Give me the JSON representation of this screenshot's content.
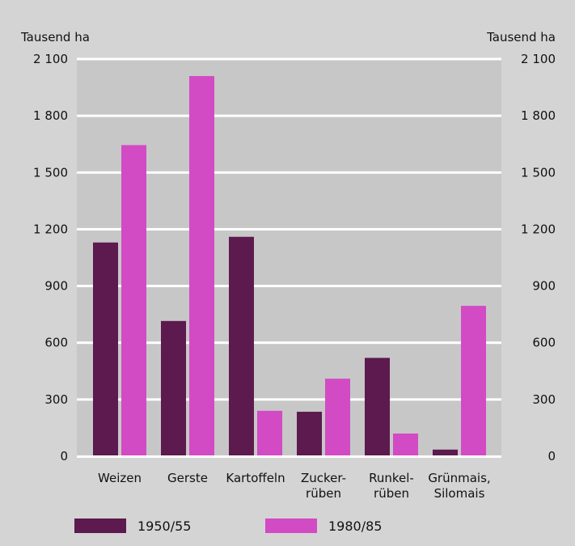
{
  "chart_data": {
    "type": "bar",
    "y_unit_left": "Tausend ha",
    "y_unit_right": "Tausend ha",
    "categories": [
      [
        "Weizen"
      ],
      [
        "Gerste"
      ],
      [
        "Kartoffeln"
      ],
      [
        "Zucker-",
        "rüben"
      ],
      [
        "Runkel-",
        "rüben"
      ],
      [
        "Grünmais,",
        "Silomais"
      ]
    ],
    "series": [
      {
        "name": "1950/55",
        "color": "#5c1a4e",
        "values": [
          1130,
          715,
          1160,
          235,
          520,
          35
        ]
      },
      {
        "name": "1980/85",
        "color": "#d24bc4",
        "values": [
          1645,
          2010,
          240,
          410,
          120,
          795
        ]
      }
    ],
    "ylim": [
      0,
      2100
    ],
    "yticks": [
      0,
      300,
      600,
      900,
      1200,
      1500,
      1800,
      2100
    ],
    "ytick_labels": [
      "0",
      "300",
      "600",
      "900",
      "1 200",
      "1 500",
      "1 800",
      "2 100"
    ],
    "grid": true,
    "legend_position": "bottom"
  }
}
